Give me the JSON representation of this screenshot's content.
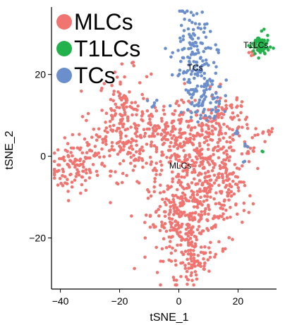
{
  "chart_data": {
    "type": "scatter",
    "xlabel": "tSNE_1",
    "ylabel": "tSNE_2",
    "xlim": [
      -43,
      33
    ],
    "ylim": [
      -32.5,
      36.5
    ],
    "xticks": [
      -40,
      -20,
      0,
      20
    ],
    "yticks": [
      -20,
      0,
      20
    ],
    "legend": {
      "placement": "top-left"
    },
    "grid": false,
    "series": [
      {
        "name": "MLCs",
        "color": "#f07470",
        "clusters": [
          {
            "cx": -36,
            "cy": -3,
            "sx": 4,
            "sy": 3,
            "n": 90
          },
          {
            "cx": -29,
            "cy": 1,
            "sx": 3,
            "sy": 4,
            "n": 40
          },
          {
            "cx": -19,
            "cy": 9,
            "sx": 4,
            "sy": 6,
            "n": 170
          },
          {
            "cx": -15,
            "cy": -1,
            "sx": 3,
            "sy": 3,
            "n": 30
          },
          {
            "cx": -8,
            "cy": 7,
            "sx": 3,
            "sy": 4,
            "n": 50
          },
          {
            "cx": -3,
            "cy": 1,
            "sx": 3,
            "sy": 3,
            "n": 40
          },
          {
            "cx": 1,
            "cy": 8,
            "sx": 3,
            "sy": 4,
            "n": 40
          },
          {
            "cx": 7,
            "cy": -2,
            "sx": 7,
            "sy": 7,
            "n": 330
          },
          {
            "cx": 2,
            "cy": -17,
            "sx": 6,
            "sy": 6,
            "n": 280
          },
          {
            "cx": 5,
            "cy": -26,
            "sx": 2,
            "sy": 2,
            "n": 40
          },
          {
            "cx": 15,
            "cy": 8,
            "sx": 4,
            "sy": 4,
            "n": 90
          },
          {
            "cx": 17,
            "cy": -8,
            "sx": 3,
            "sy": 5,
            "n": 60
          },
          {
            "cx": 25,
            "cy": 2,
            "sx": 1.5,
            "sy": 2,
            "n": 10
          },
          {
            "cx": 31,
            "cy": 6,
            "sx": 1,
            "sy": 0.6,
            "n": 7
          },
          {
            "cx": 25,
            "cy": 25,
            "sx": 0.7,
            "sy": 0.7,
            "n": 5
          }
        ]
      },
      {
        "name": "T1LCs",
        "color": "#22b24c",
        "clusters": [
          {
            "cx": 27.5,
            "cy": 27,
            "sx": 1.5,
            "sy": 1.4,
            "n": 75
          },
          {
            "cx": 28.5,
            "cy": 1.5,
            "sx": 0.3,
            "sy": 0.3,
            "n": 2
          }
        ]
      },
      {
        "name": "TCs",
        "color": "#6a8fcc",
        "clusters": [
          {
            "cx": 4,
            "cy": 29,
            "sx": 2.5,
            "sy": 4,
            "n": 60
          },
          {
            "cx": 6,
            "cy": 20,
            "sx": 3.5,
            "sy": 5,
            "n": 110
          },
          {
            "cx": 9,
            "cy": 12,
            "sx": 2.5,
            "sy": 2.5,
            "n": 40
          },
          {
            "cx": -8,
            "cy": 12,
            "sx": 1,
            "sy": 1,
            "n": 6
          },
          {
            "cx": 19,
            "cy": 6,
            "sx": 0.6,
            "sy": 0.6,
            "n": 3
          },
          {
            "cx": 23,
            "cy": 3,
            "sx": 0.6,
            "sy": 0.6,
            "n": 3
          },
          {
            "cx": 22,
            "cy": -1,
            "sx": 0.4,
            "sy": 0.4,
            "n": 2
          }
        ]
      }
    ],
    "annotations": [
      {
        "text": "T1LCs",
        "x": 26,
        "y": 26.5
      },
      {
        "text": "TCs",
        "x": 5.5,
        "y": 21
      },
      {
        "text": "MLCs",
        "x": 0.5,
        "y": -3
      }
    ]
  }
}
